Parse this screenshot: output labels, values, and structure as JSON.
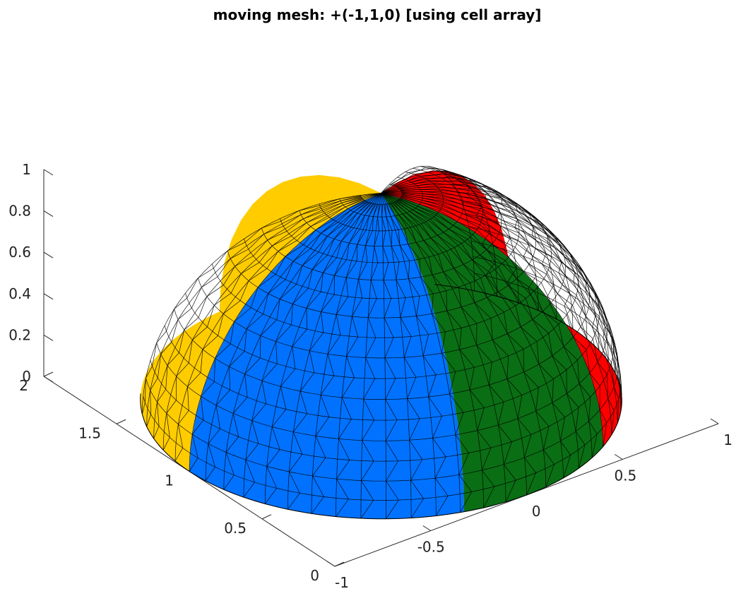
{
  "chart_data": {
    "type": "surface",
    "title": "moving mesh: +(-1,1,0) [using cell array]",
    "xlabel": "",
    "ylabel": "",
    "zlabel": "",
    "x_ticks": [
      "-1",
      "-0.5",
      "0",
      "0.5",
      "1"
    ],
    "y_ticks": [
      "0",
      "0.5",
      "1",
      "1.5",
      "2"
    ],
    "z_ticks": [
      "0",
      "0.2",
      "0.4",
      "0.6",
      "0.8",
      "1"
    ],
    "xlim": [
      -1,
      1
    ],
    "ylim": [
      0,
      2
    ],
    "zlim": [
      0,
      1
    ],
    "shape": "hemisphere of radius 1 centred at (0, 1, 0), triangulated mesh",
    "mesh_edges": "black",
    "patches": [
      {
        "color": "#0072ff"
      },
      {
        "color": "#ffcc00"
      },
      {
        "color": "#ff0000"
      },
      {
        "color": "#0a6e14"
      }
    ],
    "grid": false
  }
}
